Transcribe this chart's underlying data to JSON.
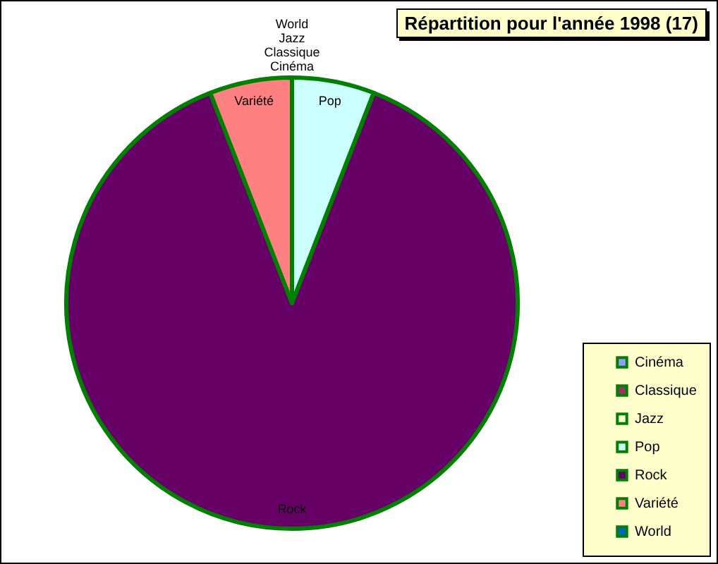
{
  "chart_data": {
    "type": "pie",
    "title": "Répartition pour l'année 1998 (17)",
    "categories": [
      "Cinéma",
      "Classique",
      "Jazz",
      "Pop",
      "Rock",
      "Variété",
      "World"
    ],
    "values": [
      0,
      0,
      0,
      5.9,
      88.2,
      5.9,
      0
    ],
    "colors": [
      "#9999ff",
      "#993366",
      "#ffffcc",
      "#ccffff",
      "#660066",
      "#ff8080",
      "#0066cc"
    ],
    "legend": "bottom right"
  }
}
